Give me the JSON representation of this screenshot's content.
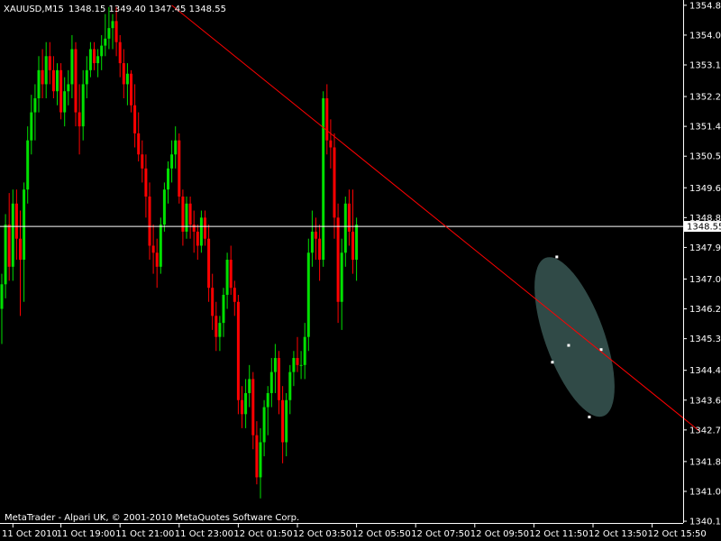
{
  "header": {
    "symbol": "XAUUSD,M15",
    "ohlc": "1348.15 1349.40 1347.45 1348.55"
  },
  "copyright": "MetaTrader - Alpari UK, © 2001-2010 MetaQuotes Software Corp.",
  "colors": {
    "background": "#000000",
    "bull": "#00e000",
    "bear": "#ff0000",
    "axis": "#ffffff",
    "trendline": "#ff0000",
    "ellipse": "#34504d",
    "current_line": "#ffffff"
  },
  "chart_data": {
    "type": "candlestick",
    "ylim": [
      1340.1,
      1355.0
    ],
    "y_ticks": [
      "1354.85",
      "1354.00",
      "1353.15",
      "1352.25",
      "1351.40",
      "1350.55",
      "1349.65",
      "1348.80",
      "1347.95",
      "1347.05",
      "1346.20",
      "1345.35",
      "1344.45",
      "1343.60",
      "1342.75",
      "1341.85",
      "1341.00",
      "1340.15"
    ],
    "y_tick_values": [
      1354.85,
      1354.0,
      1353.15,
      1352.25,
      1351.4,
      1350.55,
      1349.65,
      1348.8,
      1347.95,
      1347.05,
      1346.2,
      1345.35,
      1344.45,
      1343.6,
      1342.75,
      1341.85,
      1341.0,
      1340.15
    ],
    "x_ticks": [
      "11 Oct 2010",
      "11 Oct 19:00",
      "11 Oct 21:00",
      "11 Oct 23:00",
      "12 Oct 01:50",
      "12 Oct 03:50",
      "12 Oct 05:50",
      "12 Oct 07:50",
      "12 Oct 09:50",
      "12 Oct 11:50",
      "12 Oct 13:50",
      "12 Oct 15:50"
    ],
    "x_tick_index": [
      3,
      16,
      32,
      48,
      64,
      80,
      96,
      112,
      128,
      144,
      160,
      176
    ],
    "current_price": 1348.55,
    "current_price_label": "1348.55",
    "candles": [
      [
        1346.2,
        1347.2,
        1345.2,
        1346.9
      ],
      [
        1346.9,
        1348.9,
        1346.5,
        1348.6
      ],
      [
        1348.6,
        1349.5,
        1347.0,
        1347.4
      ],
      [
        1347.4,
        1349.6,
        1347.0,
        1349.2
      ],
      [
        1349.2,
        1349.6,
        1347.6,
        1348.2
      ],
      [
        1348.2,
        1349.0,
        1346.0,
        1347.6
      ],
      [
        1347.6,
        1349.8,
        1346.4,
        1349.6
      ],
      [
        1349.6,
        1351.4,
        1349.2,
        1351.0
      ],
      [
        1351.0,
        1352.3,
        1350.6,
        1351.8
      ],
      [
        1351.8,
        1352.6,
        1351.0,
        1352.2
      ],
      [
        1352.2,
        1353.4,
        1351.8,
        1353.0
      ],
      [
        1353.0,
        1353.6,
        1352.2,
        1352.6
      ],
      [
        1352.6,
        1353.8,
        1352.2,
        1353.4
      ],
      [
        1353.4,
        1353.8,
        1352.6,
        1353.0
      ],
      [
        1353.0,
        1353.4,
        1352.2,
        1352.4
      ],
      [
        1352.4,
        1353.2,
        1352.0,
        1353.0
      ],
      [
        1353.0,
        1353.2,
        1351.6,
        1351.8
      ],
      [
        1351.8,
        1352.8,
        1351.4,
        1352.4
      ],
      [
        1352.4,
        1353.0,
        1352.0,
        1352.6
      ],
      [
        1352.6,
        1354.0,
        1352.2,
        1353.6
      ],
      [
        1353.6,
        1353.8,
        1351.4,
        1351.8
      ],
      [
        1351.8,
        1352.6,
        1350.6,
        1351.4
      ],
      [
        1351.4,
        1353.0,
        1351.0,
        1352.6
      ],
      [
        1352.6,
        1353.4,
        1352.2,
        1353.0
      ],
      [
        1353.0,
        1353.8,
        1352.8,
        1353.6
      ],
      [
        1353.6,
        1353.8,
        1353.0,
        1353.2
      ],
      [
        1353.2,
        1353.6,
        1352.8,
        1353.4
      ],
      [
        1353.4,
        1354.0,
        1353.0,
        1353.7
      ],
      [
        1353.7,
        1354.6,
        1353.4,
        1353.9
      ],
      [
        1353.9,
        1354.8,
        1353.6,
        1354.2
      ],
      [
        1354.2,
        1354.6,
        1353.6,
        1354.4
      ],
      [
        1354.4,
        1354.8,
        1353.4,
        1353.8
      ],
      [
        1353.8,
        1354.0,
        1352.8,
        1353.2
      ],
      [
        1353.2,
        1353.6,
        1352.2,
        1352.6
      ],
      [
        1352.6,
        1353.2,
        1352.0,
        1352.9
      ],
      [
        1352.9,
        1353.0,
        1351.8,
        1352.0
      ],
      [
        1352.0,
        1352.6,
        1350.8,
        1351.2
      ],
      [
        1351.2,
        1351.8,
        1350.4,
        1350.6
      ],
      [
        1350.6,
        1351.0,
        1349.8,
        1350.2
      ],
      [
        1350.2,
        1350.6,
        1348.8,
        1349.4
      ],
      [
        1349.4,
        1349.8,
        1347.6,
        1348.0
      ],
      [
        1348.0,
        1348.6,
        1347.2,
        1347.8
      ],
      [
        1347.8,
        1348.2,
        1346.8,
        1347.4
      ],
      [
        1347.4,
        1348.8,
        1347.2,
        1348.6
      ],
      [
        1348.6,
        1349.8,
        1348.4,
        1349.6
      ],
      [
        1349.6,
        1350.4,
        1349.2,
        1350.2
      ],
      [
        1350.2,
        1351.0,
        1349.8,
        1350.6
      ],
      [
        1350.6,
        1351.4,
        1350.2,
        1351.0
      ],
      [
        1351.0,
        1351.2,
        1349.2,
        1349.4
      ],
      [
        1349.4,
        1349.6,
        1348.0,
        1348.4
      ],
      [
        1348.4,
        1349.4,
        1348.2,
        1349.2
      ],
      [
        1349.2,
        1349.4,
        1348.2,
        1348.6
      ],
      [
        1348.6,
        1349.0,
        1347.8,
        1348.4
      ],
      [
        1348.4,
        1348.6,
        1347.6,
        1348.0
      ],
      [
        1348.0,
        1349.0,
        1347.8,
        1348.8
      ],
      [
        1348.8,
        1349.0,
        1348.0,
        1348.2
      ],
      [
        1348.2,
        1348.6,
        1346.4,
        1346.8
      ],
      [
        1346.8,
        1347.2,
        1345.6,
        1346.0
      ],
      [
        1346.0,
        1346.4,
        1345.0,
        1345.4
      ],
      [
        1345.4,
        1346.0,
        1345.0,
        1345.8
      ],
      [
        1345.8,
        1346.8,
        1345.4,
        1346.6
      ],
      [
        1346.6,
        1347.8,
        1346.2,
        1347.6
      ],
      [
        1347.6,
        1348.0,
        1346.6,
        1346.8
      ],
      [
        1346.8,
        1347.0,
        1346.0,
        1346.4
      ],
      [
        1346.4,
        1346.6,
        1343.2,
        1343.6
      ],
      [
        1343.6,
        1344.0,
        1342.8,
        1343.2
      ],
      [
        1343.2,
        1344.2,
        1342.8,
        1343.8
      ],
      [
        1343.8,
        1344.6,
        1343.4,
        1344.2
      ],
      [
        1344.2,
        1344.4,
        1342.2,
        1342.6
      ],
      [
        1342.6,
        1343.0,
        1341.2,
        1341.4
      ],
      [
        1341.4,
        1342.8,
        1340.8,
        1342.4
      ],
      [
        1342.4,
        1343.6,
        1342.0,
        1343.4
      ],
      [
        1343.4,
        1344.0,
        1342.6,
        1343.8
      ],
      [
        1343.8,
        1344.8,
        1343.4,
        1344.4
      ],
      [
        1344.4,
        1345.2,
        1343.8,
        1344.8
      ],
      [
        1344.8,
        1345.0,
        1343.2,
        1343.6
      ],
      [
        1343.6,
        1344.0,
        1341.8,
        1342.4
      ],
      [
        1342.4,
        1343.8,
        1342.0,
        1343.6
      ],
      [
        1343.6,
        1344.6,
        1343.2,
        1344.4
      ],
      [
        1344.4,
        1345.0,
        1344.0,
        1344.8
      ],
      [
        1344.8,
        1345.4,
        1344.4,
        1344.6
      ],
      [
        1344.6,
        1345.0,
        1344.2,
        1344.6
      ],
      [
        1344.6,
        1345.8,
        1344.2,
        1345.4
      ],
      [
        1345.4,
        1348.2,
        1345.0,
        1347.8
      ],
      [
        1347.8,
        1349.0,
        1347.4,
        1348.4
      ],
      [
        1348.4,
        1348.8,
        1347.6,
        1348.2
      ],
      [
        1348.2,
        1348.6,
        1347.0,
        1347.6
      ],
      [
        1347.6,
        1352.4,
        1347.4,
        1352.2
      ],
      [
        1352.2,
        1352.6,
        1350.6,
        1351.0
      ],
      [
        1351.0,
        1351.6,
        1350.2,
        1350.8
      ],
      [
        1350.8,
        1351.2,
        1348.2,
        1348.8
      ],
      [
        1348.8,
        1349.2,
        1345.8,
        1346.4
      ],
      [
        1346.4,
        1348.2,
        1345.6,
        1347.8
      ],
      [
        1347.8,
        1349.4,
        1347.4,
        1349.2
      ],
      [
        1349.2,
        1349.6,
        1348.0,
        1348.4
      ],
      [
        1348.4,
        1349.6,
        1347.2,
        1347.6
      ],
      [
        1347.6,
        1348.8,
        1347.0,
        1348.6
      ]
    ],
    "trendline": {
      "from": [
        46,
        1354.85
      ],
      "to": [
        189,
        1342.7
      ]
    },
    "ellipse": {
      "center": [
        155,
        1345.4
      ],
      "rx_bars": 8,
      "ry_price": 1.2
    }
  }
}
